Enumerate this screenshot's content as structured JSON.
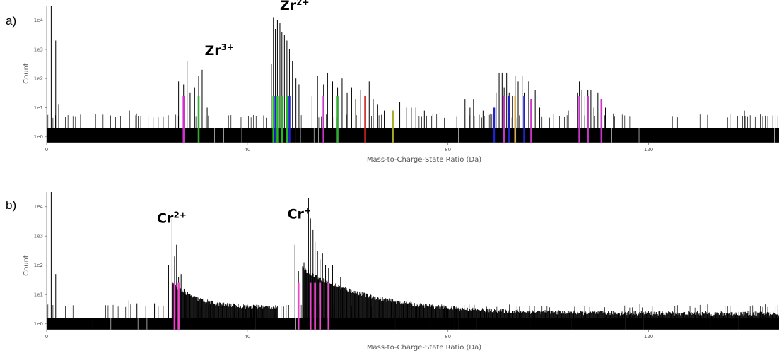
{
  "chart_data": [
    {
      "type": "histogram",
      "panel_label": "a)",
      "xlabel": "Mass-to-Charge-State Ratio (Da)",
      "ylabel": "Count",
      "xlim": [
        0,
        146
      ],
      "ylim_log10": [
        -0.2,
        4.5
      ],
      "y_scale": "log",
      "x_ticks": [
        {
          "value": 0,
          "label": "0"
        },
        {
          "value": 40,
          "label": "40"
        },
        {
          "value": 80,
          "label": "80"
        },
        {
          "value": 120,
          "label": "120"
        }
      ],
      "y_ticks": [
        {
          "value": 0,
          "label": "1e0"
        },
        {
          "value": 1,
          "label": "1e1"
        },
        {
          "value": 2,
          "label": "1e2"
        },
        {
          "value": 3,
          "label": "1e3"
        },
        {
          "value": 4,
          "label": "1e4"
        }
      ],
      "annotations": [
        {
          "base": "Zr",
          "sup": "3+",
          "x": 31.5,
          "y": 2.8
        },
        {
          "base": "Zr",
          "sup": "2+",
          "x": 46.5,
          "y": 4.35
        }
      ],
      "background_level": 0.3,
      "peaks": [
        {
          "x": 0.9,
          "y": 4.5,
          "color": "#000000"
        },
        {
          "x": 1.8,
          "y": 3.3,
          "color": "#000000"
        },
        {
          "x": 2.4,
          "y": 1.1,
          "color": "#000000"
        },
        {
          "x": 16.5,
          "y": 0.9,
          "color": "#000000"
        },
        {
          "x": 17.9,
          "y": 0.8,
          "color": "#000000"
        },
        {
          "x": 26.3,
          "y": 1.9,
          "color": "#000000"
        },
        {
          "x": 27.3,
          "y": 1.8,
          "color": "#cc33cc"
        },
        {
          "x": 28.0,
          "y": 2.6,
          "color": "#000000"
        },
        {
          "x": 28.6,
          "y": 1.5,
          "color": "#000000"
        },
        {
          "x": 29.5,
          "y": 1.7,
          "color": "#000000"
        },
        {
          "x": 30.3,
          "y": 2.1,
          "color": "#33aa33"
        },
        {
          "x": 31.0,
          "y": 2.3,
          "color": "#000000"
        },
        {
          "x": 32.0,
          "y": 1.0,
          "color": "#000000"
        },
        {
          "x": 44.8,
          "y": 2.5,
          "color": "#000000"
        },
        {
          "x": 45.2,
          "y": 4.1,
          "color": "#22bb22"
        },
        {
          "x": 45.6,
          "y": 3.7,
          "color": "#2222cc"
        },
        {
          "x": 46.0,
          "y": 4.0,
          "color": "#22bb22"
        },
        {
          "x": 46.5,
          "y": 3.9,
          "color": "#000000"
        },
        {
          "x": 46.9,
          "y": 3.6,
          "color": "#22bb22"
        },
        {
          "x": 47.4,
          "y": 3.5,
          "color": "#000000"
        },
        {
          "x": 47.9,
          "y": 3.3,
          "color": "#22bb22"
        },
        {
          "x": 48.4,
          "y": 3.0,
          "color": "#2222cc"
        },
        {
          "x": 49.0,
          "y": 2.6,
          "color": "#000000"
        },
        {
          "x": 49.7,
          "y": 2.0,
          "color": "#000000"
        },
        {
          "x": 50.3,
          "y": 1.8,
          "color": "#000000"
        },
        {
          "x": 52.9,
          "y": 1.4,
          "color": "#000000"
        },
        {
          "x": 54.0,
          "y": 2.1,
          "color": "#000000"
        },
        {
          "x": 55.2,
          "y": 1.8,
          "color": "#cc33cc"
        },
        {
          "x": 56.0,
          "y": 2.2,
          "color": "#000000"
        },
        {
          "x": 57.0,
          "y": 1.9,
          "color": "#000000"
        },
        {
          "x": 58.0,
          "y": 1.7,
          "color": "#33aa33"
        },
        {
          "x": 58.9,
          "y": 2.0,
          "color": "#000000"
        },
        {
          "x": 59.9,
          "y": 1.5,
          "color": "#000000"
        },
        {
          "x": 60.8,
          "y": 1.7,
          "color": "#000000"
        },
        {
          "x": 61.6,
          "y": 1.3,
          "color": "#000000"
        },
        {
          "x": 62.6,
          "y": 1.6,
          "color": "#000000"
        },
        {
          "x": 63.5,
          "y": 1.4,
          "color": "#cc2222"
        },
        {
          "x": 64.3,
          "y": 1.9,
          "color": "#000000"
        },
        {
          "x": 65.1,
          "y": 1.3,
          "color": "#000000"
        },
        {
          "x": 66.0,
          "y": 1.1,
          "color": "#000000"
        },
        {
          "x": 67.3,
          "y": 0.9,
          "color": "#000000"
        },
        {
          "x": 69.0,
          "y": 0.9,
          "color": "#aaaa22"
        },
        {
          "x": 70.4,
          "y": 1.2,
          "color": "#000000"
        },
        {
          "x": 71.7,
          "y": 1.0,
          "color": "#000000"
        },
        {
          "x": 72.7,
          "y": 1.0,
          "color": "#000000"
        },
        {
          "x": 73.6,
          "y": 1.0,
          "color": "#000000"
        },
        {
          "x": 75.3,
          "y": 0.9,
          "color": "#000000"
        },
        {
          "x": 77.0,
          "y": 0.8,
          "color": "#000000"
        },
        {
          "x": 83.4,
          "y": 1.3,
          "color": "#000000"
        },
        {
          "x": 84.4,
          "y": 1.0,
          "color": "#000000"
        },
        {
          "x": 85.1,
          "y": 1.3,
          "color": "#000000"
        },
        {
          "x": 87.0,
          "y": 0.9,
          "color": "#000000"
        },
        {
          "x": 88.5,
          "y": 0.8,
          "color": "#000000"
        },
        {
          "x": 89.2,
          "y": 1.0,
          "color": "#2222cc"
        },
        {
          "x": 89.6,
          "y": 1.5,
          "color": "#000000"
        },
        {
          "x": 90.2,
          "y": 2.2,
          "color": "#000000"
        },
        {
          "x": 90.8,
          "y": 2.2,
          "color": "#000000"
        },
        {
          "x": 91.2,
          "y": 1.7,
          "color": "#cc33cc"
        },
        {
          "x": 91.7,
          "y": 2.2,
          "color": "#000000"
        },
        {
          "x": 92.2,
          "y": 1.5,
          "color": "#2222cc"
        },
        {
          "x": 92.9,
          "y": 1.4,
          "color": "#000000"
        },
        {
          "x": 93.4,
          "y": 2.1,
          "color": "#ddaa55"
        },
        {
          "x": 94.0,
          "y": 1.9,
          "color": "#000000"
        },
        {
          "x": 94.8,
          "y": 2.1,
          "color": "#000000"
        },
        {
          "x": 95.2,
          "y": 1.5,
          "color": "#2222cc"
        },
        {
          "x": 96.1,
          "y": 1.9,
          "color": "#000000"
        },
        {
          "x": 96.6,
          "y": 1.3,
          "color": "#cc33cc"
        },
        {
          "x": 97.4,
          "y": 1.6,
          "color": "#000000"
        },
        {
          "x": 98.3,
          "y": 1.0,
          "color": "#000000"
        },
        {
          "x": 101.0,
          "y": 0.8,
          "color": "#000000"
        },
        {
          "x": 104.0,
          "y": 0.9,
          "color": "#000000"
        },
        {
          "x": 105.8,
          "y": 1.5,
          "color": "#000000"
        },
        {
          "x": 106.2,
          "y": 1.9,
          "color": "#cc33cc"
        },
        {
          "x": 106.7,
          "y": 1.6,
          "color": "#000000"
        },
        {
          "x": 107.3,
          "y": 1.4,
          "color": "#000000"
        },
        {
          "x": 107.9,
          "y": 1.6,
          "color": "#cc33cc"
        },
        {
          "x": 108.5,
          "y": 1.6,
          "color": "#000000"
        },
        {
          "x": 109.1,
          "y": 1.0,
          "color": "#000000"
        },
        {
          "x": 109.9,
          "y": 1.5,
          "color": "#000000"
        },
        {
          "x": 110.6,
          "y": 1.3,
          "color": "#cc33cc"
        },
        {
          "x": 111.4,
          "y": 1.0,
          "color": "#000000"
        },
        {
          "x": 113.0,
          "y": 0.8,
          "color": "#000000"
        },
        {
          "x": 139.1,
          "y": 0.9,
          "color": "#000000"
        }
      ]
    },
    {
      "type": "histogram",
      "panel_label": "b)",
      "xlabel": "Mass-to-Charge-State Ratio (Da)",
      "ylabel": "Count",
      "xlim": [
        0,
        146
      ],
      "ylim_log10": [
        -0.2,
        4.5
      ],
      "y_scale": "log",
      "x_ticks": [
        {
          "value": 0,
          "label": "0"
        },
        {
          "value": 40,
          "label": "40"
        },
        {
          "value": 80,
          "label": "80"
        },
        {
          "value": 120,
          "label": "120"
        }
      ],
      "y_ticks": [
        {
          "value": 0,
          "label": "1e0"
        },
        {
          "value": 1,
          "label": "1e1"
        },
        {
          "value": 2,
          "label": "1e2"
        },
        {
          "value": 3,
          "label": "1e3"
        },
        {
          "value": 4,
          "label": "1e4"
        }
      ],
      "annotations": [
        {
          "base": "Cr",
          "sup": "2+",
          "x": 22.0,
          "y": 3.45
        },
        {
          "base": "Cr",
          "sup": "+",
          "x": 48.0,
          "y": 3.6
        }
      ],
      "background_level": 0.2,
      "tail_regions": [
        {
          "start": 25.0,
          "end": 46.0,
          "peak": 1.4,
          "floor": 0.55,
          "decay": 5.0
        },
        {
          "start": 51.0,
          "end": 146.0,
          "peak": 1.9,
          "floor": 0.35,
          "decay": 14.0
        }
      ],
      "peaks": [
        {
          "x": 0.9,
          "y": 4.5,
          "color": "#000000"
        },
        {
          "x": 1.8,
          "y": 1.7,
          "color": "#000000"
        },
        {
          "x": 16.4,
          "y": 0.8,
          "color": "#000000"
        },
        {
          "x": 18.0,
          "y": 0.7,
          "color": "#000000"
        },
        {
          "x": 21.5,
          "y": 0.7,
          "color": "#000000"
        },
        {
          "x": 24.3,
          "y": 2.0,
          "color": "#000000"
        },
        {
          "x": 25.0,
          "y": 3.7,
          "color": "#000000"
        },
        {
          "x": 25.5,
          "y": 2.3,
          "color": "#ee44cc"
        },
        {
          "x": 25.9,
          "y": 2.7,
          "color": "#000000"
        },
        {
          "x": 26.3,
          "y": 1.6,
          "color": "#ee44cc"
        },
        {
          "x": 26.8,
          "y": 1.7,
          "color": "#000000"
        },
        {
          "x": 27.4,
          "y": 1.2,
          "color": "#000000"
        },
        {
          "x": 49.5,
          "y": 2.7,
          "color": "#000000"
        },
        {
          "x": 50.2,
          "y": 1.8,
          "color": "#ee44cc"
        },
        {
          "x": 51.3,
          "y": 2.1,
          "color": "#000000"
        },
        {
          "x": 52.2,
          "y": 4.3,
          "color": "#000000"
        },
        {
          "x": 52.6,
          "y": 3.6,
          "color": "#ee44cc"
        },
        {
          "x": 53.1,
          "y": 3.2,
          "color": "#000000"
        },
        {
          "x": 53.5,
          "y": 2.8,
          "color": "#ee44cc"
        },
        {
          "x": 54.0,
          "y": 2.5,
          "color": "#000000"
        },
        {
          "x": 54.5,
          "y": 2.2,
          "color": "#ee44cc"
        },
        {
          "x": 55.0,
          "y": 2.4,
          "color": "#000000"
        },
        {
          "x": 55.6,
          "y": 2.0,
          "color": "#000000"
        },
        {
          "x": 56.2,
          "y": 1.9,
          "color": "#ee44cc"
        },
        {
          "x": 57.0,
          "y": 2.0,
          "color": "#000000"
        },
        {
          "x": 58.6,
          "y": 1.6,
          "color": "#000000"
        }
      ]
    }
  ]
}
